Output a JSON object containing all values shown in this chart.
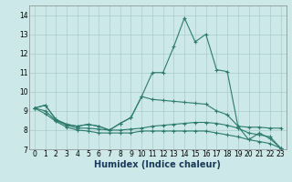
{
  "title": "",
  "xlabel": "Humidex (Indice chaleur)",
  "background_color": "#cce8e8",
  "grid_color": "#aacccc",
  "line_color": "#2d7b6e",
  "x_values": [
    0,
    1,
    2,
    3,
    4,
    5,
    6,
    7,
    8,
    9,
    10,
    11,
    12,
    13,
    14,
    15,
    16,
    17,
    18,
    19,
    20,
    21,
    22,
    23
  ],
  "line1": [
    9.15,
    9.3,
    8.55,
    8.3,
    8.2,
    8.3,
    8.2,
    8.0,
    8.35,
    8.65,
    9.75,
    11.0,
    11.0,
    12.35,
    13.85,
    12.6,
    13.0,
    11.15,
    11.05,
    8.2,
    7.5,
    7.85,
    7.55,
    7.05
  ],
  "line2": [
    9.15,
    9.3,
    8.55,
    8.3,
    8.2,
    8.3,
    8.2,
    8.0,
    8.35,
    8.65,
    9.75,
    9.6,
    9.55,
    9.5,
    9.45,
    9.4,
    9.35,
    9.0,
    8.8,
    8.2,
    8.15,
    8.15,
    8.1,
    8.1
  ],
  "line3": [
    9.15,
    9.0,
    8.5,
    8.25,
    8.1,
    8.1,
    8.05,
    8.0,
    8.0,
    8.05,
    8.1,
    8.2,
    8.25,
    8.3,
    8.35,
    8.4,
    8.4,
    8.35,
    8.25,
    8.1,
    7.85,
    7.75,
    7.65,
    7.05
  ],
  "line4": [
    9.15,
    8.85,
    8.45,
    8.15,
    8.0,
    7.95,
    7.85,
    7.85,
    7.85,
    7.85,
    7.95,
    7.95,
    7.95,
    7.95,
    7.95,
    7.95,
    7.95,
    7.85,
    7.75,
    7.65,
    7.5,
    7.4,
    7.3,
    7.05
  ],
  "ylim": [
    7.0,
    14.5
  ],
  "yticks": [
    7,
    8,
    9,
    10,
    11,
    12,
    13,
    14
  ],
  "xlim": [
    -0.5,
    23.5
  ],
  "tick_fontsize": 5.5,
  "xlabel_fontsize": 7,
  "xlabel_color": "#1a3a5a"
}
